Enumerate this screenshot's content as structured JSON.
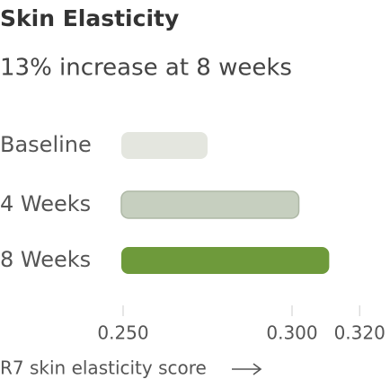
{
  "chart_data": {
    "type": "bar",
    "orientation": "horizontal",
    "title": "Skin Elasticity",
    "subtitle": "13% increase at 8 weeks",
    "categories": [
      "Baseline",
      "4 Weeks",
      "8 Weeks"
    ],
    "values": [
      0.275,
      0.302,
      0.311
    ],
    "colors": [
      "#e4e6df",
      "#c6cfbf",
      "#6e9a3b"
    ],
    "xlim": [
      0.25,
      0.325
    ],
    "xticks": [
      {
        "value": 0.25,
        "label": "0.250"
      },
      {
        "value": 0.3,
        "label": "0.300"
      },
      {
        "value": 0.32,
        "label": "0.320"
      }
    ],
    "x_label": "R7 skin elasticity score"
  }
}
